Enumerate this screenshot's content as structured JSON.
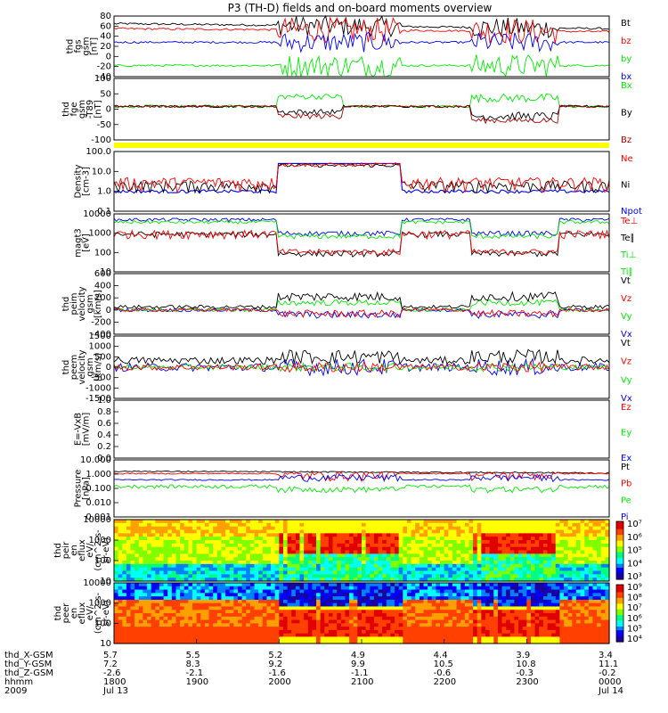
{
  "title": "P3 (TH-D) fields and on-board moments overview",
  "colors": {
    "black": "#000000",
    "red": "#ff0000",
    "green": "#00ee00",
    "blue": "#0000ff",
    "darkred": "#aa0000",
    "yellow": "#ffff00"
  },
  "chart_data": [
    {
      "type": "line",
      "id": "fgs",
      "ylabel": [
        "thd",
        "fgs",
        "gsm",
        "[nT]"
      ],
      "ylim": [
        -40,
        80
      ],
      "ticks": [
        "80",
        "60",
        "40",
        "20",
        "0",
        "-20",
        "-40"
      ],
      "legend": [
        {
          "name": "Bt",
          "color": "black"
        },
        {
          "name": "bz",
          "color": "red"
        },
        {
          "name": "by",
          "color": "green"
        },
        {
          "name": "bx",
          "color": "blue"
        }
      ]
    },
    {
      "type": "line",
      "id": "fge",
      "ylabel": [
        "thd",
        "fge",
        "gsm",
        "-T89",
        "[nT]"
      ],
      "ylim": [
        -120,
        100
      ],
      "ticks": [
        "100",
        "50",
        "0",
        "-50",
        "-100"
      ],
      "legend": [
        {
          "name": "Bx",
          "color": "green"
        },
        {
          "name": "By",
          "color": "black"
        },
        {
          "name": "Bz",
          "color": "darkred"
        }
      ]
    },
    {
      "type": "line",
      "id": "density",
      "ylabel": [
        "Density",
        "[cm-3]"
      ],
      "ylim": [
        0.1,
        100
      ],
      "scale": "log",
      "ticks": [
        "100.0",
        "10.0",
        "1.0",
        "0.1"
      ],
      "legend": [
        {
          "name": "Ne",
          "color": "red"
        },
        {
          "name": "Ni",
          "color": "black"
        },
        {
          "name": "Npot",
          "color": "blue"
        }
      ]
    },
    {
      "type": "line",
      "id": "temp",
      "ylabel": [
        "magt3",
        "[eV]"
      ],
      "ylim": [
        10,
        10000
      ],
      "scale": "log",
      "ticks": [
        "10000",
        "1000",
        "100",
        "10"
      ],
      "legend": [
        {
          "name": "Te⊥",
          "color": "red"
        },
        {
          "name": "Te∥",
          "color": "black"
        },
        {
          "name": "Ti⊥",
          "color": "green"
        },
        {
          "name": "Ti∥",
          "color": "green"
        }
      ]
    },
    {
      "type": "line",
      "id": "peim",
      "ylabel": [
        "thd",
        "peim",
        "velocity",
        "gsm",
        "[km/s]"
      ],
      "ylim": [
        -400,
        600
      ],
      "ticks": [
        "600",
        "400",
        "200",
        "0",
        "-200",
        "-400"
      ],
      "legend": [
        {
          "name": "Vt",
          "color": "black"
        },
        {
          "name": "Vz",
          "color": "red"
        },
        {
          "name": "Vy",
          "color": "green"
        },
        {
          "name": "Vx",
          "color": "blue"
        }
      ]
    },
    {
      "type": "line",
      "id": "peem",
      "ylabel": [
        "thd",
        "peem",
        "velocity",
        "gsm",
        "[km/s]"
      ],
      "ylim": [
        -1500,
        1500
      ],
      "ticks": [
        "1500",
        "1000",
        "500",
        "0",
        "-500",
        "-1000",
        "-1500"
      ],
      "legend": [
        {
          "name": "Vt",
          "color": "black"
        },
        {
          "name": "Vz",
          "color": "red"
        },
        {
          "name": "Vy",
          "color": "green"
        },
        {
          "name": "Vx",
          "color": "blue"
        }
      ]
    },
    {
      "type": "line",
      "id": "efield",
      "ylabel": [
        "E=-VxB",
        "[mV/m]"
      ],
      "ylim": [
        0,
        1
      ],
      "ticks": [
        "1.0",
        "0.8",
        "0.6",
        "0.4",
        "0.2",
        "0.0"
      ],
      "legend": [
        {
          "name": "Ez",
          "color": "red"
        },
        {
          "name": "Ey",
          "color": "green"
        },
        {
          "name": "Ex",
          "color": "blue"
        }
      ]
    },
    {
      "type": "line",
      "id": "pressure",
      "ylabel": [
        "Pressure",
        "[nPa]"
      ],
      "ylim": [
        0.001,
        10
      ],
      "scale": "log",
      "ticks": [
        "10.000",
        "1.000",
        "0.100",
        "0.010",
        "0.001"
      ],
      "legend": [
        {
          "name": "Pt",
          "color": "black"
        },
        {
          "name": "Pb",
          "color": "red"
        },
        {
          "name": "Pe",
          "color": "green"
        },
        {
          "name": "Pi",
          "color": "blue"
        }
      ]
    },
    {
      "type": "heatmap",
      "id": "peir",
      "ylabel": [
        "thd",
        "peir",
        "en",
        "eflux",
        "eV/",
        "(cm^2-s-",
        "sr-eV)"
      ],
      "ylim": [
        5,
        20000
      ],
      "scale": "log",
      "ticks": [
        "10000",
        "1000",
        "100",
        "10"
      ],
      "colorbar": {
        "labels": [
          "10⁷",
          "10⁶",
          "10⁵",
          "10⁴",
          "10³"
        ]
      }
    },
    {
      "type": "heatmap",
      "id": "peer",
      "ylabel": [
        "thd",
        "peer",
        "en",
        "eflux",
        "eV/",
        "(cm^2-s-",
        "sr-eV)"
      ],
      "ylim": [
        8,
        20000
      ],
      "scale": "log",
      "ticks": [
        "10000",
        "1000",
        "100",
        "10"
      ],
      "colorbar": {
        "labels": [
          "10⁹",
          "10⁸",
          "10⁷",
          "10⁶",
          "10⁵",
          "10⁴"
        ]
      }
    }
  ],
  "time_axis": {
    "rows": [
      {
        "label": "thd_X-GSM",
        "values": [
          "5.7",
          "5.5",
          "5.2",
          "4.9",
          "4.4",
          "3.9",
          "3.4"
        ]
      },
      {
        "label": "thd_Y-GSM",
        "values": [
          "7.2",
          "8.3",
          "9.2",
          "9.9",
          "10.5",
          "10.8",
          "11.1"
        ]
      },
      {
        "label": "thd_Z-GSM",
        "values": [
          "-2.6",
          "-2.1",
          "-1.6",
          "-1.1",
          "-0.6",
          "-0.3",
          "-0.2"
        ]
      },
      {
        "label": "hhmm",
        "values": [
          "1800",
          "1900",
          "2000",
          "2100",
          "2200",
          "2300",
          "0000"
        ]
      },
      {
        "label": "2009",
        "values": [
          "Jul 13",
          "",
          "",
          "",
          "",
          "",
          "Jul 14"
        ]
      }
    ]
  }
}
